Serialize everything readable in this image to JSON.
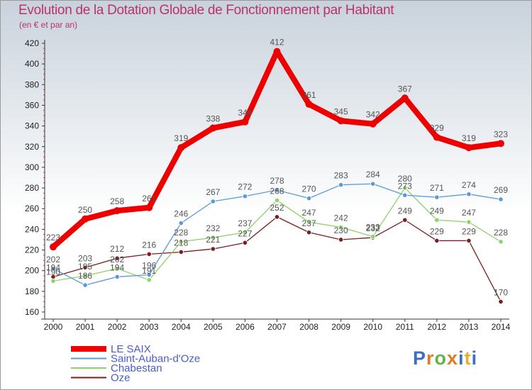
{
  "chart_data": {
    "type": "line",
    "title": "Evolution de la Dotation Globale de Fonctionnement par Habitant",
    "subtitle": "(en € et par an)",
    "xlabel": "",
    "ylabel": "",
    "ylim": [
      160,
      420
    ],
    "yticks": [
      160,
      180,
      200,
      220,
      240,
      260,
      280,
      300,
      320,
      340,
      360,
      380,
      400,
      420
    ],
    "x": [
      "2000",
      "2001",
      "2002",
      "2003",
      "2004",
      "2005",
      "2006",
      "2007",
      "2008",
      "2009",
      "2010",
      "2011",
      "2012",
      "2013",
      "2014"
    ],
    "grid": false,
    "legend_position": "bottom-left",
    "series": [
      {
        "name": "LE SAIX",
        "color": "#ee0000",
        "values": [
          223,
          250,
          258,
          261,
          319,
          338,
          344,
          412,
          361,
          345,
          342,
          367,
          329,
          319,
          323
        ]
      },
      {
        "name": "Saint-Auban-d'Oze",
        "color": "#5b9bd5",
        "values": [
          202,
          186,
          194,
          196,
          246,
          267,
          272,
          278,
          270,
          283,
          284,
          273,
          271,
          274,
          269
        ]
      },
      {
        "name": "Chabestan",
        "color": "#8fd16a",
        "values": [
          190,
          195,
          202,
          191,
          228,
          232,
          237,
          268,
          247,
          242,
          233,
          280,
          249,
          247,
          228
        ]
      },
      {
        "name": "Oze",
        "color": "#7a1f1f",
        "values": [
          194,
          203,
          212,
          216,
          218,
          221,
          227,
          252,
          237,
          230,
          232,
          249,
          229,
          229,
          170
        ]
      }
    ],
    "data_labels": {
      "LE SAIX": [
        "223",
        "250",
        "258",
        "261",
        "319",
        "338",
        "344",
        "412",
        "361",
        "345",
        "342",
        "367",
        "329",
        "319",
        "323"
      ],
      "Saint-Auban-d'Oze": [
        "202",
        "186",
        "194",
        "196",
        "246",
        "267",
        "272",
        "278",
        "270",
        "283",
        "284",
        "273",
        "271",
        "274",
        "269"
      ],
      "Chabestan": [
        "190",
        "195",
        "202",
        "191",
        "228",
        "232",
        "237",
        "268",
        "247",
        "242",
        "233",
        "280",
        "249",
        "247",
        "228"
      ],
      "Oze": [
        "194",
        "203",
        "212",
        "216",
        "218",
        "221",
        "227",
        "252",
        "237",
        "230",
        "232",
        "249",
        "229",
        "229",
        "170"
      ]
    }
  },
  "logo": {
    "p": "P",
    "r": "r",
    "o": "o",
    "x": "x",
    "i": "i",
    "t": "t",
    "i2": "i"
  }
}
